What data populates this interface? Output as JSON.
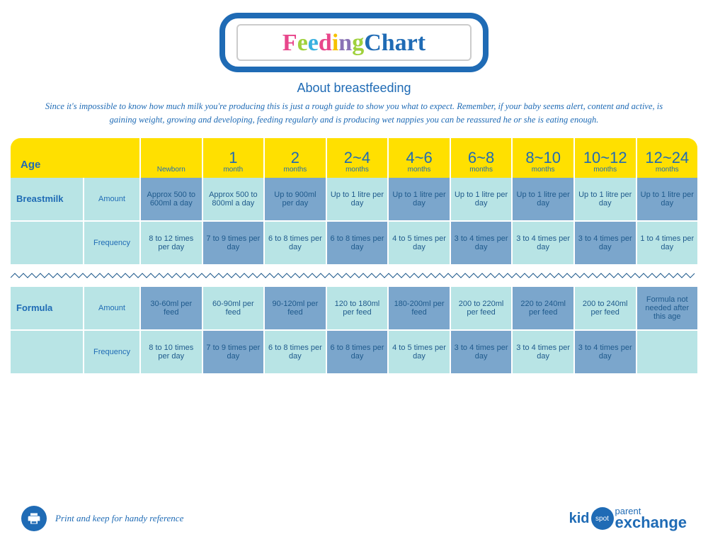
{
  "title_letters": [
    {
      "t": "F",
      "c": "#e8468b"
    },
    {
      "t": "e",
      "c": "#9fd13c"
    },
    {
      "t": "e",
      "c": "#3ab0e0"
    },
    {
      "t": "d",
      "c": "#e8468b"
    },
    {
      "t": "i",
      "c": "#f6c100"
    },
    {
      "t": "n",
      "c": "#8a73b5"
    },
    {
      "t": "g",
      "c": "#9fd13c"
    },
    {
      "t": " Chart",
      "c": "#1f6bb5"
    }
  ],
  "subtitle": "About breastfeeding",
  "intro": "Since it's impossible to know how much milk you're producing this is just a rough guide to show you what to expect. Remember, if your baby seems alert, content and active, is gaining weight, growing and developing, feeding regularly and is producing wet nappies you can be reassured he or she is eating enough.",
  "age_label": "Age",
  "headers": [
    {
      "big": "",
      "small": "Newborn"
    },
    {
      "big": "1",
      "small": "month"
    },
    {
      "big": "2",
      "small": "months"
    },
    {
      "big": "2~4",
      "small": "months"
    },
    {
      "big": "4~6",
      "small": "months"
    },
    {
      "big": "6~8",
      "small": "months"
    },
    {
      "big": "8~10",
      "small": "months"
    },
    {
      "big": "10~12",
      "small": "months"
    },
    {
      "big": "12~24",
      "small": "months"
    }
  ],
  "sections": [
    {
      "name": "Breastmilk",
      "rows": [
        {
          "label": "Amount",
          "values": [
            "Approx 500 to 600ml a day",
            "Approx 500 to 800ml a day",
            "Up to 900ml per day",
            "Up to 1 litre per day",
            "Up to 1 litre per day",
            "Up to 1 litre per day",
            "Up to 1 litre per day",
            "Up to 1 litre per day",
            "Up to 1 litre per day"
          ]
        },
        {
          "label": "Frequency",
          "values": [
            "8 to 12 times per day",
            "7 to 9 times per day",
            "6 to 8 times per day",
            "6 to 8 times per day",
            "4 to 5 times per day",
            "3 to 4 times per day",
            "3 to 4 times per day",
            "3 to 4 times per day",
            "1 to 4 times per day"
          ]
        }
      ]
    },
    {
      "name": "Formula",
      "rows": [
        {
          "label": "Amount",
          "values": [
            "30-60ml per feed",
            "60-90ml per feed",
            "90-120ml per feed",
            "120 to 180ml per feed",
            "180-200ml per feed",
            "200 to 220ml per feed",
            "220 to 240ml per feed",
            "200 to 240ml per feed",
            "Formula not needed after this age"
          ]
        },
        {
          "label": "Frequency",
          "values": [
            "8 to 10 times per day",
            "7 to 9 times per day",
            "6 to 8 times per day",
            "6 to 8 times per day",
            "4 to 5 times per day",
            "3 to 4 times per day",
            "3 to 4 times per day",
            "3 to 4 times per day",
            ""
          ]
        }
      ]
    }
  ],
  "print_text": "Print and keep for handy reference",
  "logo": {
    "kid": "kid",
    "spot": "spot",
    "parent": "parent",
    "exchange": "exchange"
  },
  "colors": {
    "header_bg": "#ffe000",
    "cell_dark": "#7ba6cc",
    "cell_light": "#b8e4e5",
    "brand": "#1f6bb5",
    "text_cell": "#1f5a8c"
  }
}
